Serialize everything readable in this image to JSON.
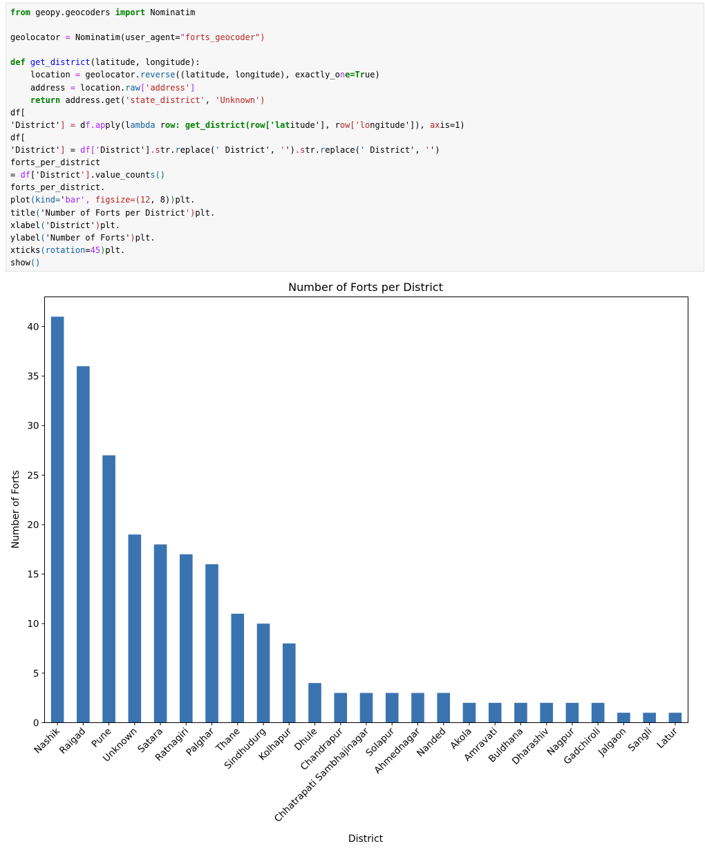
{
  "notebook": {
    "code_lines": [
      "from geopy.geocoders import Nominatim",
      "",
      "geolocator = Nominatim(user_agent=\"forts_geocoder\")",
      "",
      "def get_district(latitude, longitude):",
      "    location = geolocator.reverse((latitude, longitude), exactly_one=True)",
      "    address = location.raw['address']",
      "    return address.get('state_district', 'Unknown')",
      "",
      "df['District'] = df.apply(lambda row: get_district(row['latitude'], row['longitude']), axis=1)",
      "",
      "df['District'] = df['District'].str.replace(' District', '').str.replace(' District', '')",
      "",
      "forts_per_district = df['District'].value_counts()",
      "",
      "forts_per_district.plot(kind='bar', figsize=(12, 8))",
      "plt.title('Number of Forts per District')",
      "plt.xlabel('District')",
      "plt.ylabel('Number of Forts')",
      "plt.xticks(rotation=45)",
      "plt.show()"
    ]
  },
  "chart_data": {
    "type": "bar",
    "title": "Number of Forts per District",
    "xlabel": "District",
    "ylabel": "Number of Forts",
    "categories": [
      "Nashik",
      "Raigad",
      "Pune",
      "Unknown",
      "Satara",
      "Ratnagiri",
      "Palghar",
      "Thane",
      "Sindhudurg",
      "Kolhapur",
      "Dhule",
      "Chandrapur",
      "Chhatrapati Sambhajinagar",
      "Solapur",
      "Ahmednagar",
      "Nanded",
      "Akola",
      "Amravati",
      "Buldhana",
      "Dharashiv",
      "Nagpur",
      "Gadchiroli",
      "Jalgaon",
      "Sangli",
      "Latur"
    ],
    "values": [
      41,
      36,
      27,
      19,
      18,
      17,
      16,
      11,
      10,
      8,
      4,
      3,
      3,
      3,
      3,
      3,
      2,
      2,
      2,
      2,
      2,
      2,
      1,
      1,
      1
    ],
    "yticks": [
      "0",
      "5",
      "10",
      "15",
      "20",
      "25",
      "30",
      "35",
      "40"
    ],
    "ylim": [
      0,
      43
    ],
    "bar_color": "#3a74b0",
    "xtick_rotation": 45,
    "grid": false,
    "legend": false
  }
}
